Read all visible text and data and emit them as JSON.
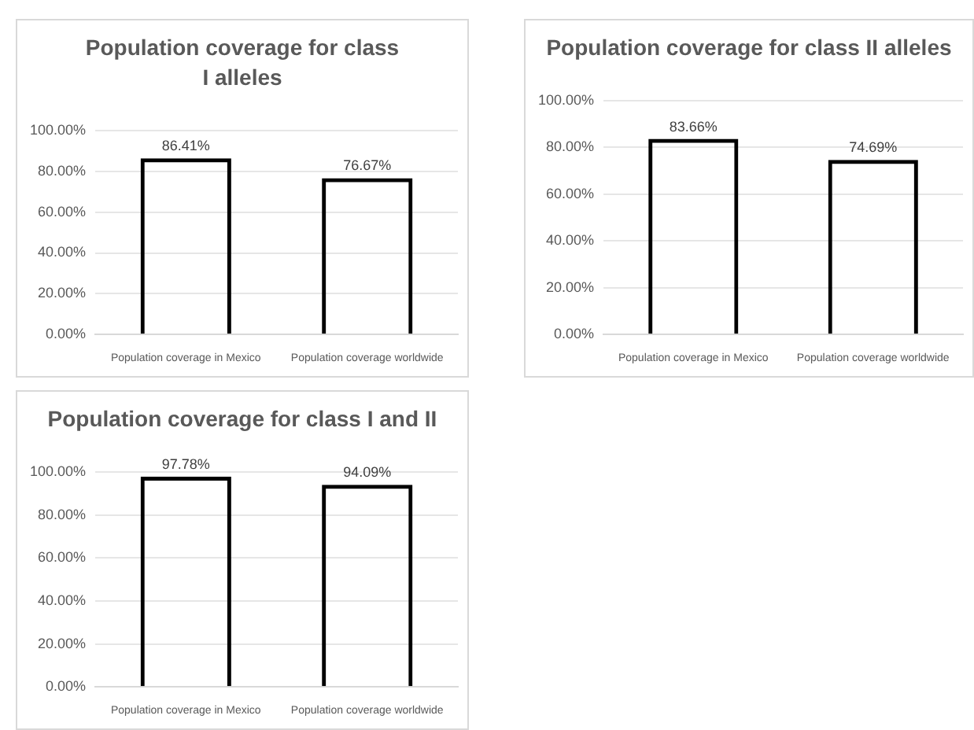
{
  "chart_data": [
    {
      "type": "bar",
      "title": "Population coverage for class I alleles",
      "categories": [
        "Population coverage in Mexico",
        "Population coverage worldwide"
      ],
      "values": [
        86.41,
        76.67
      ],
      "value_labels": [
        "86.41%",
        "76.67%"
      ],
      "color": "#000000",
      "ylim": [
        0,
        100
      ],
      "yticks": [
        {
          "value": 0,
          "label": "0.00%"
        },
        {
          "value": 20,
          "label": "20.00%"
        },
        {
          "value": 40,
          "label": "40.00%"
        },
        {
          "value": 60,
          "label": "60.00%"
        },
        {
          "value": 80,
          "label": "80.00%"
        },
        {
          "value": 100,
          "label": "100.00%"
        }
      ],
      "grid": "y",
      "legend": false
    },
    {
      "type": "bar",
      "title": "Population coverage for class II alleles",
      "categories": [
        "Population coverage in Mexico",
        "Population coverage worldwide"
      ],
      "values": [
        83.66,
        74.69
      ],
      "value_labels": [
        "83.66%",
        "74.69%"
      ],
      "color": "#000000",
      "ylim": [
        0,
        100
      ],
      "yticks": [
        {
          "value": 0,
          "label": "0.00%"
        },
        {
          "value": 20,
          "label": "20.00%"
        },
        {
          "value": 40,
          "label": "40.00%"
        },
        {
          "value": 60,
          "label": "60.00%"
        },
        {
          "value": 80,
          "label": "80.00%"
        },
        {
          "value": 100,
          "label": "100.00%"
        }
      ],
      "grid": "y",
      "legend": false
    },
    {
      "type": "bar",
      "title": "Population coverage for class I and II",
      "categories": [
        "Population coverage in Mexico",
        "Population coverage worldwide"
      ],
      "values": [
        97.78,
        94.09
      ],
      "value_labels": [
        "97.78%",
        "94.09%"
      ],
      "color": "#000000",
      "ylim": [
        0,
        100
      ],
      "yticks": [
        {
          "value": 0,
          "label": "0.00%"
        },
        {
          "value": 20,
          "label": "20.00%"
        },
        {
          "value": 40,
          "label": "40.00%"
        },
        {
          "value": 60,
          "label": "60.00%"
        },
        {
          "value": 80,
          "label": "80.00%"
        },
        {
          "value": 100,
          "label": "100.00%"
        }
      ],
      "grid": "y",
      "legend": false
    }
  ]
}
